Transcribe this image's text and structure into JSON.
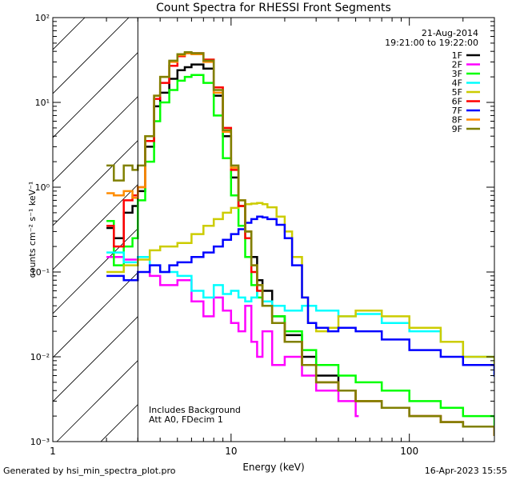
{
  "chart_data": {
    "type": "line",
    "title": "Count Spectra for RHESSI Front Segments",
    "xlabel": "Energy (keV)",
    "ylabel": "counts cm⁻² s⁻¹ keV⁻¹",
    "x_scale": "log",
    "y_scale": "log",
    "xlim": [
      1,
      300
    ],
    "ylim": [
      0.001,
      100
    ],
    "x_ticks": [
      "1",
      "10",
      "100"
    ],
    "y_ticks": [
      "10⁻³",
      "10⁻²",
      "10⁻¹",
      "10⁰",
      "10¹",
      "10²"
    ],
    "hatched_region_max_energy": 3,
    "date": "21-Aug-2014",
    "time_range": "19:21:00 to 19:22:00",
    "annotations": [
      "Includes Background",
      "Att A0, FDecim 1"
    ],
    "legend_position": "top-right",
    "series": [
      {
        "name": "1F",
        "color": "#000000",
        "x": [
          2,
          2.2,
          2.5,
          2.8,
          3,
          3.3,
          3.7,
          4,
          4.5,
          5,
          5.5,
          6,
          7,
          8,
          9,
          10,
          11,
          12,
          13,
          14,
          15,
          17,
          20,
          25,
          30,
          40,
          50,
          70,
          100,
          150,
          200,
          300
        ],
        "y": [
          0.33,
          0.25,
          0.5,
          0.6,
          0.9,
          3,
          9,
          13,
          19,
          24,
          26,
          28,
          25,
          12,
          4,
          1.3,
          0.6,
          0.3,
          0.15,
          0.08,
          0.06,
          0.03,
          0.018,
          0.01,
          0.006,
          0.004,
          0.003,
          0.0025,
          0.002,
          0.0017,
          0.0015,
          0.0012
        ]
      },
      {
        "name": "2F",
        "color": "#ff00ff",
        "x": [
          2,
          2.5,
          3,
          3.5,
          4,
          5,
          6,
          7,
          8,
          9,
          10,
          11,
          12,
          13,
          14,
          15,
          17,
          20,
          25,
          30,
          40,
          50
        ],
        "y": [
          0.15,
          0.14,
          0.15,
          0.09,
          0.07,
          0.08,
          0.045,
          0.03,
          0.05,
          0.035,
          0.025,
          0.02,
          0.04,
          0.015,
          0.01,
          0.02,
          0.008,
          0.01,
          0.006,
          0.004,
          0.003,
          0.002
        ]
      },
      {
        "name": "3F",
        "color": "#00ff00",
        "x": [
          2,
          2.2,
          2.5,
          2.8,
          3,
          3.3,
          3.7,
          4,
          4.5,
          5,
          5.5,
          6,
          7,
          8,
          9,
          10,
          11,
          12,
          13,
          14,
          15,
          17,
          20,
          25,
          30,
          40,
          50,
          70,
          100,
          150,
          200,
          300
        ],
        "y": [
          0.4,
          0.12,
          0.2,
          0.25,
          0.7,
          2,
          6,
          10,
          14,
          18,
          20,
          21,
          17,
          7,
          2.2,
          0.8,
          0.35,
          0.15,
          0.07,
          0.05,
          0.04,
          0.03,
          0.02,
          0.012,
          0.008,
          0.006,
          0.005,
          0.004,
          0.003,
          0.0025,
          0.002,
          0.0015
        ]
      },
      {
        "name": "4F",
        "color": "#00ffff",
        "x": [
          2,
          2.5,
          3,
          3.5,
          4,
          5,
          6,
          7,
          8,
          9,
          10,
          11,
          12,
          13,
          14,
          15,
          17,
          20,
          25,
          30,
          40,
          50,
          70,
          100,
          150,
          200,
          300
        ],
        "y": [
          0.17,
          0.13,
          0.15,
          0.12,
          0.1,
          0.09,
          0.06,
          0.05,
          0.07,
          0.055,
          0.06,
          0.05,
          0.045,
          0.05,
          0.06,
          0.045,
          0.04,
          0.035,
          0.04,
          0.035,
          0.03,
          0.032,
          0.025,
          0.02,
          0.015,
          0.01,
          0.006
        ]
      },
      {
        "name": "5F",
        "color": "#cccc00",
        "x": [
          2,
          2.5,
          3,
          3.5,
          4,
          4.5,
          5,
          6,
          7,
          8,
          9,
          10,
          11,
          12,
          13,
          14,
          15,
          16,
          18,
          20,
          22,
          25,
          27,
          30,
          35,
          40,
          50,
          70,
          100,
          150,
          200,
          300
        ],
        "y": [
          0.1,
          0.12,
          0.14,
          0.18,
          0.2,
          0.2,
          0.22,
          0.28,
          0.35,
          0.42,
          0.5,
          0.57,
          0.6,
          0.63,
          0.64,
          0.65,
          0.63,
          0.58,
          0.45,
          0.3,
          0.15,
          0.05,
          0.025,
          0.02,
          0.022,
          0.03,
          0.035,
          0.03,
          0.022,
          0.015,
          0.01,
          0.007
        ]
      },
      {
        "name": "6F",
        "color": "#ff0000",
        "x": [
          2,
          2.2,
          2.5,
          2.8,
          3,
          3.3,
          3.7,
          4,
          4.5,
          5,
          5.5,
          6,
          7,
          8,
          9,
          10,
          11,
          12,
          13,
          14,
          15,
          17,
          20,
          25,
          30,
          40,
          50,
          70,
          100,
          150,
          200,
          300
        ],
        "y": [
          0.35,
          0.2,
          0.7,
          0.8,
          1,
          3.5,
          11,
          17,
          27,
          35,
          38,
          38,
          32,
          15,
          5,
          1.6,
          0.6,
          0.25,
          0.1,
          0.06,
          0.04,
          0.025,
          0.015,
          0.008,
          0.005,
          0.004,
          0.003,
          0.0025,
          0.002,
          0.0017,
          0.0015,
          0.0012
        ]
      },
      {
        "name": "7F",
        "color": "#0000ff",
        "x": [
          2,
          2.5,
          3,
          3.5,
          4,
          4.5,
          5,
          6,
          7,
          8,
          9,
          10,
          11,
          12,
          13,
          14,
          15,
          16,
          18,
          20,
          22,
          25,
          27,
          30,
          35,
          40,
          50,
          70,
          100,
          150,
          200,
          300
        ],
        "y": [
          0.09,
          0.08,
          0.1,
          0.12,
          0.1,
          0.12,
          0.13,
          0.15,
          0.17,
          0.2,
          0.24,
          0.28,
          0.32,
          0.38,
          0.42,
          0.45,
          0.44,
          0.42,
          0.36,
          0.25,
          0.12,
          0.05,
          0.025,
          0.022,
          0.02,
          0.022,
          0.02,
          0.016,
          0.012,
          0.01,
          0.008,
          0.006
        ]
      },
      {
        "name": "8F",
        "color": "#ff8c00",
        "x": [
          2,
          2.2,
          2.5,
          2.8,
          3,
          3.3,
          3.7,
          4,
          4.5,
          5,
          5.5,
          6,
          7,
          8,
          9,
          10,
          11,
          12,
          13,
          14,
          15,
          17,
          20,
          25,
          30,
          40,
          50,
          70,
          100,
          150,
          200,
          300
        ],
        "y": [
          0.85,
          0.8,
          0.9,
          0.75,
          1,
          4,
          12,
          20,
          30,
          36,
          38,
          37,
          30,
          13,
          4.5,
          1.7,
          0.7,
          0.3,
          0.12,
          0.07,
          0.04,
          0.025,
          0.015,
          0.008,
          0.005,
          0.004,
          0.003,
          0.0025,
          0.002,
          0.0017,
          0.0015,
          0.0012
        ]
      },
      {
        "name": "9F",
        "color": "#808000",
        "x": [
          2,
          2.2,
          2.5,
          2.8,
          3,
          3.3,
          3.7,
          4,
          4.5,
          5,
          5.5,
          6,
          7,
          8,
          9,
          10,
          11,
          12,
          13,
          14,
          15,
          17,
          20,
          25,
          30,
          40,
          50,
          70,
          100,
          150,
          200,
          300
        ],
        "y": [
          1.8,
          1.2,
          1.8,
          1.6,
          1.8,
          4,
          12,
          20,
          31,
          37,
          39,
          38,
          31,
          14,
          4.7,
          1.8,
          0.7,
          0.3,
          0.12,
          0.07,
          0.04,
          0.025,
          0.015,
          0.008,
          0.005,
          0.004,
          0.003,
          0.0025,
          0.002,
          0.0017,
          0.0015,
          0.0012
        ]
      }
    ]
  },
  "footer": {
    "left": "Generated by hsi_min_spectra_plot.pro",
    "right": "16-Apr-2023 15:55"
  }
}
